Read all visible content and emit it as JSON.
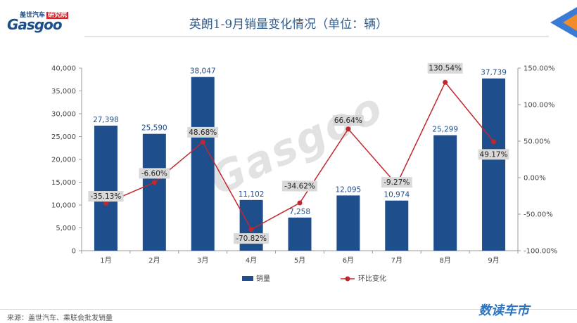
{
  "header": {
    "logo_top": "盖世汽车",
    "logo_tag": "研究院",
    "logo_main": "Gasgoo",
    "title": "英朗1-9月销量变化情况（单位：辆）"
  },
  "footer": {
    "source": "来源：盖世汽车、乘联会批发销量",
    "brand": "数读车市"
  },
  "watermark": "Gasgoo",
  "colors": {
    "bar": "#1f4e8c",
    "line": "#c0282f",
    "label_bg": "#d9d9d9"
  },
  "chart_data": {
    "type": "bar",
    "title": "英朗1-9月销量变化情况（单位：辆）",
    "categories": [
      "1月",
      "2月",
      "3月",
      "4月",
      "5月",
      "6月",
      "7月",
      "8月",
      "9月"
    ],
    "series": [
      {
        "name": "销量",
        "type": "bar",
        "axis": "left",
        "values": [
          27398,
          25590,
          38047,
          11102,
          7258,
          12095,
          10974,
          25299,
          37739
        ],
        "labels": [
          "27,398",
          "25,590",
          "38,047",
          "11,102",
          "7,258",
          "12,095",
          "10,974",
          "25,299",
          "37,739"
        ]
      },
      {
        "name": "环比变化",
        "type": "line",
        "axis": "right",
        "values": [
          -35.13,
          -6.6,
          48.68,
          -70.82,
          -34.62,
          66.64,
          -9.27,
          130.54,
          49.17
        ],
        "labels": [
          "-35.13%",
          "-6.60%",
          "48.68%",
          "-70.82%",
          "-34.62%",
          "66.64%",
          "-9.27%",
          "130.54%",
          "49.17%"
        ]
      }
    ],
    "ylim_left": [
      0,
      40000
    ],
    "ylim_right": [
      -100,
      150
    ],
    "left_ticks": [
      "0",
      "5,000",
      "10,000",
      "15,000",
      "20,000",
      "25,000",
      "30,000",
      "35,000",
      "40,000"
    ],
    "right_ticks": [
      "-100.00%",
      "-50.00%",
      "0.00%",
      "50.00%",
      "100.00%",
      "150.00%"
    ],
    "legend_position": "bottom",
    "grid": false
  }
}
